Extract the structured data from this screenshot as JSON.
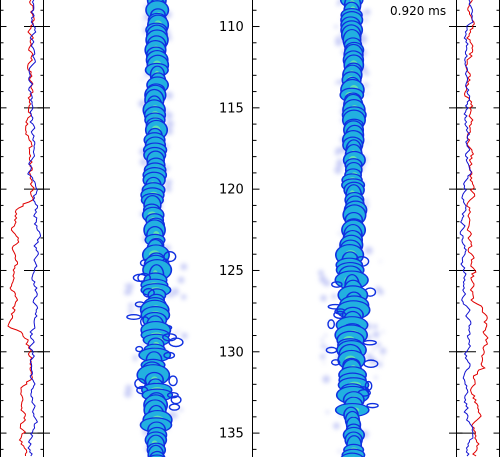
{
  "figure": {
    "time_label": "0.920 ms",
    "colors": {
      "red_trace": "#e00000",
      "blue_trace": "#1010d0",
      "jet_core": "#22b0e0",
      "jet_inner": "#5fe0b0",
      "jet_outline": "#1030e0",
      "jet_haze": "#a0a8f0"
    }
  },
  "chart_data": {
    "type": "image",
    "y_axis": {
      "ticks": [
        110,
        115,
        120,
        125,
        130,
        135
      ],
      "tick_labels": [
        "110",
        "115",
        "120",
        "125",
        "130",
        "135"
      ],
      "range": [
        108.4,
        136.5
      ],
      "direction": "increasing-downward"
    },
    "panels": [
      {
        "name": "",
        "content": "instantaneous jet image"
      },
      {
        "name": "",
        "content": "instantaneous jet image"
      }
    ],
    "side_profiles": [
      {
        "position": "left",
        "series": [
          "red",
          "blue"
        ]
      },
      {
        "position": "right",
        "series": [
          "red",
          "blue"
        ]
      }
    ]
  }
}
